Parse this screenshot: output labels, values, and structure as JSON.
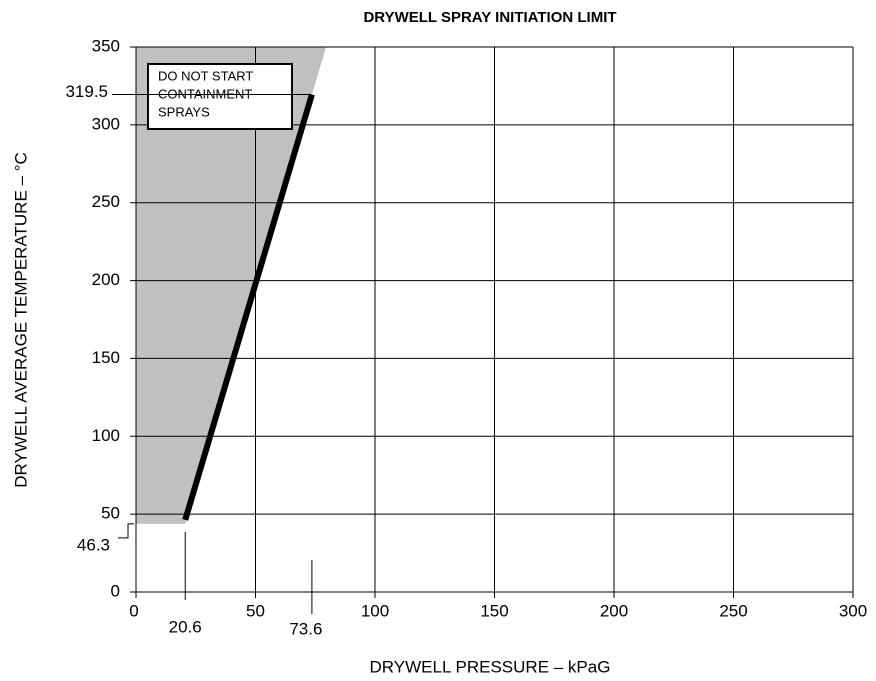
{
  "chart_data": {
    "type": "line",
    "title": "DRYWELL SPRAY INITIATION LIMIT",
    "x_label": "DRYWELL PRESSURE – kPaG",
    "y_label": "DRYWELL AVERAGE TEMPERATURE – °C",
    "annotation": [
      "DO NOT START",
      "CONTAINMENT",
      "SPRAYS"
    ],
    "x": [
      20.6,
      73.6
    ],
    "series": [
      {
        "color": "#000000",
        "values": [
          46.3,
          319.5
        ]
      }
    ],
    "shade_color": "#c0c0c0",
    "xlim": [
      0,
      300
    ],
    "xticks": [
      0,
      50,
      100,
      150,
      200,
      250,
      300
    ],
    "ylim": [
      0,
      350
    ],
    "yticks": [
      0,
      50,
      100,
      150,
      200,
      250,
      300,
      350
    ],
    "grid": true
  }
}
